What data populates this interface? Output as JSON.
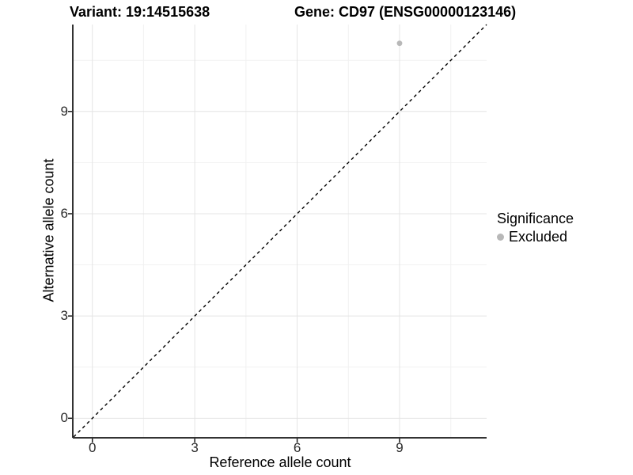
{
  "figure": {
    "title_variant": "Variant: 19:14515638",
    "title_gene": "Gene: CD97 (ENSG00000123146)"
  },
  "chart_data": {
    "type": "scatter",
    "title": "Variant: 19:14515638   Gene: CD97 (ENSG00000123146)",
    "xlabel": "Reference allele count",
    "ylabel": "Alternative allele count",
    "xlim": [
      -0.55,
      11.55
    ],
    "ylim": [
      -0.55,
      11.55
    ],
    "x_ticks": [
      0,
      3,
      6,
      9
    ],
    "y_ticks": [
      0,
      3,
      6,
      9
    ],
    "x_minor_ticks": [
      1.5,
      4.5,
      7.5,
      10.5
    ],
    "y_minor_ticks": [
      1.5,
      4.5,
      7.5,
      10.5
    ],
    "grid": true,
    "legend_position": "right",
    "identity_line": {
      "type": "dashed",
      "x1": -0.55,
      "y1": -0.55,
      "x2": 11.55,
      "y2": 11.55,
      "color": "#000000"
    },
    "series": [
      {
        "name": "Excluded",
        "color": "#b8b8b8",
        "points": [
          {
            "x": 9,
            "y": 11
          }
        ]
      }
    ],
    "legend": {
      "title": "Significance",
      "items": [
        {
          "label": "Excluded",
          "color": "#b8b8b8"
        }
      ]
    },
    "colors": {
      "grid_major": "#e4e4e4",
      "grid_minor": "#f1f1f1",
      "axis_line": "#333333",
      "tick_mark": "#1a1a1a",
      "point": "#b8b8b8",
      "identity_line": "#000000",
      "panel_background": "#ffffff"
    }
  }
}
